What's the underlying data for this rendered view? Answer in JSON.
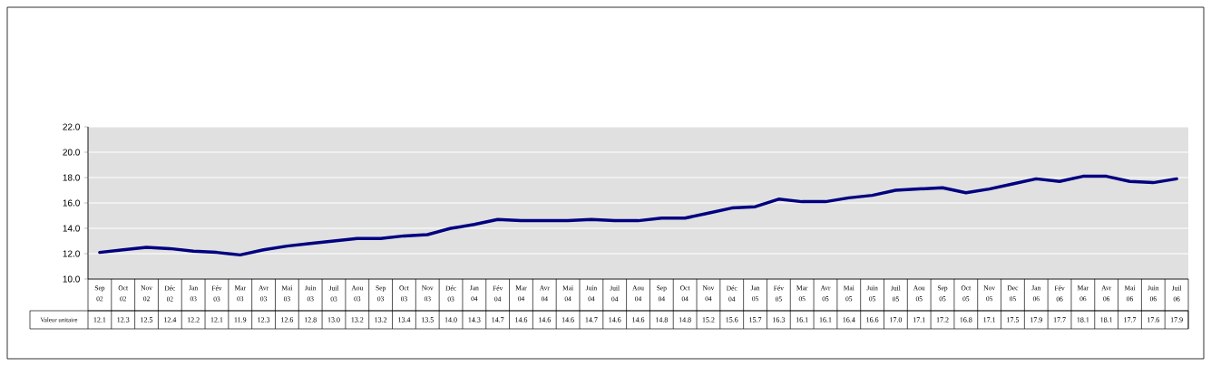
{
  "chart_data": {
    "type": "line",
    "categories": [
      "Sep 02",
      "Oct 02",
      "Nov 02",
      "Déc 02",
      "Jan 03",
      "Fév 03",
      "Mar 03",
      "Avr 03",
      "Mai 03",
      "Juin 03",
      "Juil 03",
      "Aou 03",
      "Sep 03",
      "Oct 03",
      "Nov 03",
      "Déc 03",
      "Jan 04",
      "Fév 04",
      "Mar 04",
      "Avr 04",
      "Mai 04",
      "Juin 04",
      "Juil 04",
      "Aou 04",
      "Sep 04",
      "Oct 04",
      "Nov 04",
      "Déc 04",
      "Jan 05",
      "Fév 05",
      "Mar 05",
      "Avr 05",
      "Mai 05",
      "Juin 05",
      "Juil 05",
      "Aou 05",
      "Sep 05",
      "Oct 05",
      "Nov 05",
      "Dec 05",
      "Jan 06",
      "Fév 06",
      "Mar 06",
      "Avr 06",
      "Mai 06",
      "Juin 06",
      "Juil 06"
    ],
    "series": [
      {
        "name": "Valeur unitaire",
        "color": "#000080",
        "values": [
          12.1,
          12.3,
          12.5,
          12.4,
          12.2,
          12.1,
          11.9,
          12.3,
          12.6,
          12.8,
          13.0,
          13.2,
          13.2,
          13.4,
          13.5,
          14.0,
          14.3,
          14.7,
          14.6,
          14.6,
          14.6,
          14.7,
          14.6,
          14.6,
          14.8,
          14.8,
          15.2,
          15.6,
          15.7,
          16.3,
          16.1,
          16.1,
          16.4,
          16.6,
          17.0,
          17.1,
          17.2,
          16.8,
          17.1,
          17.5,
          17.9,
          17.7,
          18.1,
          18.1,
          17.7,
          17.6,
          17.9
        ],
        "value_labels": [
          "12.1",
          "12.3",
          "12.5",
          "12.4",
          "12.2",
          "12.1",
          "11.9",
          "12.3",
          "12.6",
          "12.8",
          "13.0",
          "13.2",
          "13.2",
          "13.4",
          "13.5",
          "14.0",
          "14.3",
          "14.7",
          "14.6",
          "14.6",
          "14.6",
          "14.7",
          "14.6",
          "14.6",
          "14.8",
          "14.8",
          "15.2",
          "15.6",
          "15.7",
          "16.3",
          "16.1",
          "16.1",
          "16.4",
          "16.6",
          "17.0",
          "17.1",
          "17.2",
          "16.8",
          "17.1",
          "17.5",
          "17.9",
          "17.7",
          "18.1",
          "18.1",
          "17.7",
          "17.6",
          "17.9"
        ]
      }
    ],
    "ylim": [
      10,
      22
    ],
    "yticks": [
      {
        "value": 10,
        "label": "10.0"
      },
      {
        "value": 12,
        "label": "12.0"
      },
      {
        "value": 14,
        "label": "14.0"
      },
      {
        "value": 16,
        "label": "16.0"
      },
      {
        "value": 18,
        "label": "18.0"
      },
      {
        "value": 20,
        "label": "20.0"
      },
      {
        "value": 22,
        "label": "22.0"
      }
    ],
    "grid": "y"
  }
}
